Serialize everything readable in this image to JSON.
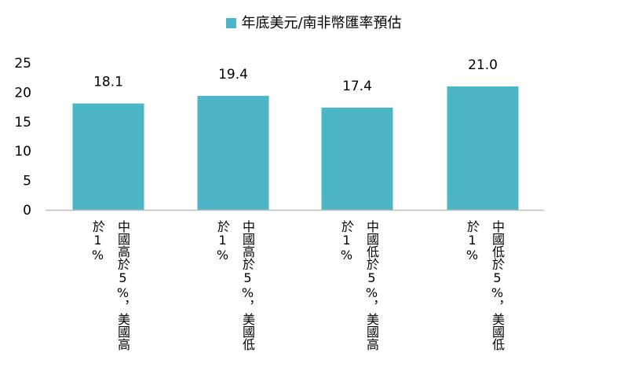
{
  "chart_data": {
    "type": "bar",
    "legend": {
      "position": "top-center",
      "entries": [
        {
          "name": "年底美元/南非幣匯率預估",
          "color": "#4db6c6"
        }
      ]
    },
    "series": [
      {
        "name": "年底美元/南非幣匯率預估",
        "color": "#4db6c6",
        "values": [
          18.1,
          19.4,
          17.4,
          21.0
        ],
        "value_labels": [
          "18.1",
          "19.4",
          "17.4",
          "21.0"
        ]
      }
    ],
    "categories": [
      {
        "lines": [
          "中國高於5%，美國高",
          "於1%"
        ]
      },
      {
        "lines": [
          "中國高於5%，美國低",
          "於1%"
        ]
      },
      {
        "lines": [
          "中國低於5%，美國高",
          "於1%"
        ]
      },
      {
        "lines": [
          "中國低於5%，美國低",
          "於1%"
        ]
      }
    ],
    "y_axis": {
      "min": 0,
      "max": 25,
      "ticks": [
        0,
        5,
        10,
        15,
        20,
        25
      ],
      "tick_labels": [
        "0",
        "5",
        "10",
        "15",
        "20",
        "25"
      ]
    },
    "grid": false,
    "axis_color": "#bfbfbf"
  }
}
